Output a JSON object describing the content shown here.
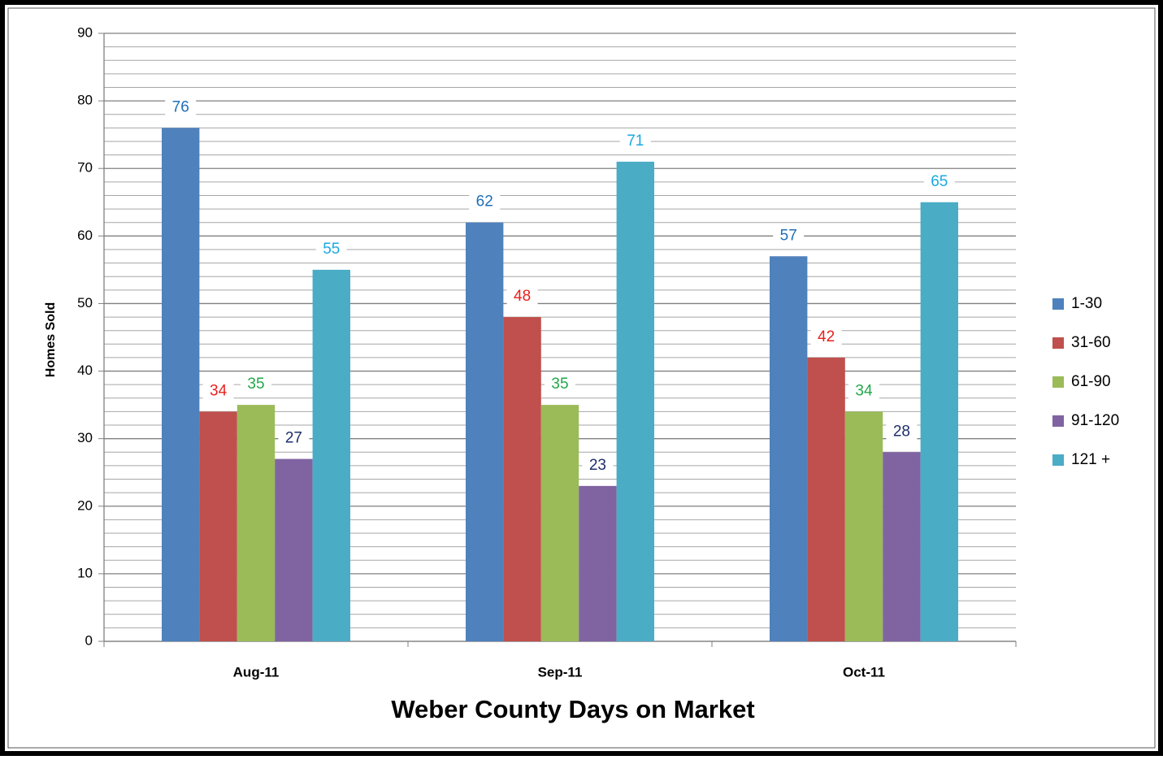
{
  "chart_data": {
    "type": "bar",
    "title": "Weber County Days on Market",
    "y_label": "Homes Sold",
    "categories": [
      "Aug-11",
      "Sep-11",
      "Oct-11"
    ],
    "series": [
      {
        "name": "1-30",
        "color": "#4f81bd",
        "label_color": "#1f6fb8",
        "values": [
          76,
          62,
          57
        ]
      },
      {
        "name": "31-60",
        "color": "#c0504d",
        "label_color": "#e8211f",
        "values": [
          34,
          48,
          42
        ]
      },
      {
        "name": "61-90",
        "color": "#9bbb59",
        "label_color": "#22a84a",
        "values": [
          35,
          35,
          34
        ]
      },
      {
        "name": "91-120",
        "color": "#8064a2",
        "label_color": "#1f2f6b",
        "values": [
          27,
          23,
          28
        ]
      },
      {
        "name": "121 +",
        "color": "#4bacc6",
        "label_color": "#1aa9e0",
        "values": [
          55,
          71,
          65
        ]
      }
    ],
    "ylim": [
      0,
      90
    ],
    "yticks": [
      0,
      10,
      20,
      30,
      40,
      50,
      60,
      70,
      80,
      90
    ],
    "grid": true,
    "minor_grid": true,
    "legend": "right"
  }
}
